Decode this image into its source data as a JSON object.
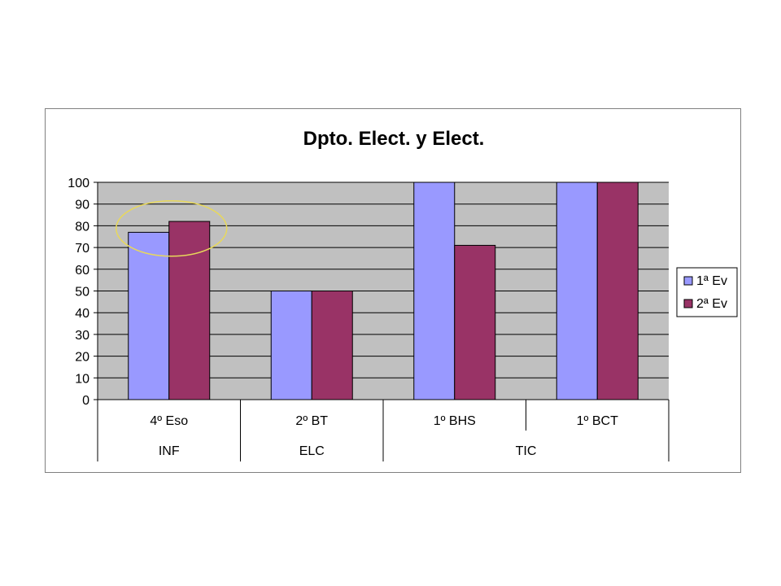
{
  "chart_data": {
    "type": "bar",
    "title": "Dpto. Elect. y Elect.",
    "categories": [
      "4º Eso",
      "2º BT",
      "1º BHS",
      "1º BCT"
    ],
    "groups": [
      {
        "label": "INF",
        "span": 1
      },
      {
        "label": "ELC",
        "span": 1
      },
      {
        "label": "TIC",
        "span": 2
      }
    ],
    "series": [
      {
        "name": "1ª Ev",
        "color": "#9999ff",
        "values": [
          77,
          50,
          100,
          100
        ]
      },
      {
        "name": "2ª Ev",
        "color": "#993366",
        "values": [
          82,
          50,
          71,
          100
        ]
      }
    ],
    "ylim": [
      0,
      100
    ],
    "yticks": [
      "0",
      "10",
      "20",
      "30",
      "40",
      "50",
      "60",
      "70",
      "80",
      "90",
      "100"
    ],
    "grid": true,
    "plot_background": "#c0c0c0",
    "legend_position": "right",
    "annotation": {
      "type": "ellipse",
      "category_index": 0,
      "color": "#e8d85a"
    }
  }
}
